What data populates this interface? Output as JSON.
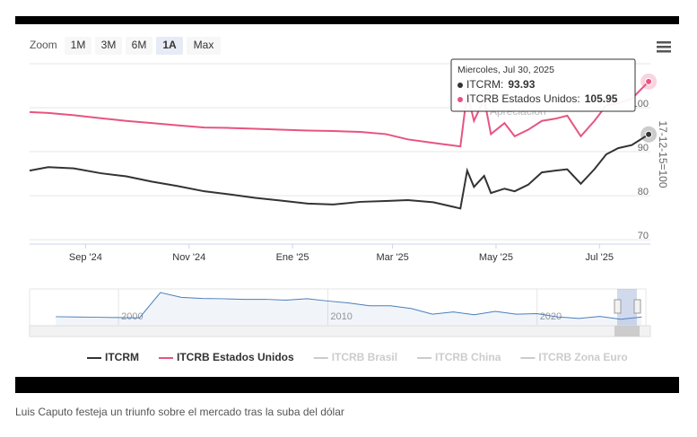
{
  "chart_data": {
    "type": "line",
    "zoom": {
      "label": "Zoom",
      "buttons": [
        "1M",
        "3M",
        "6M",
        "1A",
        "Max"
      ],
      "selected": 3
    },
    "x": [
      "2024-07-30",
      "2024-08-10",
      "2024-08-25",
      "2024-09-10",
      "2024-09-25",
      "2024-10-10",
      "2024-10-25",
      "2024-11-10",
      "2024-11-25",
      "2024-12-10",
      "2024-12-25",
      "2025-01-10",
      "2025-01-25",
      "2025-02-10",
      "2025-02-25",
      "2025-03-10",
      "2025-03-25",
      "2025-04-10",
      "2025-04-14",
      "2025-04-18",
      "2025-04-24",
      "2025-04-28",
      "2025-05-06",
      "2025-05-12",
      "2025-05-20",
      "2025-05-28",
      "2025-06-05",
      "2025-06-12",
      "2025-06-20",
      "2025-06-28",
      "2025-07-05",
      "2025-07-12",
      "2025-07-20",
      "2025-07-30"
    ],
    "series": [
      {
        "name": "ITCRM",
        "color": "#333333",
        "values": [
          85.7,
          86.5,
          86.2,
          85.1,
          84.4,
          83.2,
          82.2,
          81.0,
          80.3,
          79.5,
          78.9,
          78.2,
          78.0,
          78.6,
          78.8,
          79.0,
          78.5,
          77.1,
          85.7,
          82.0,
          84.5,
          80.6,
          81.6,
          81.0,
          82.5,
          85.3,
          85.7,
          86.0,
          82.7,
          86.0,
          89.4,
          90.8,
          91.5,
          93.93
        ]
      },
      {
        "name": "ITCRB Estados Unidos",
        "color": "#e75480",
        "values": [
          99.0,
          98.8,
          98.3,
          97.6,
          97.0,
          96.5,
          96.0,
          95.5,
          95.4,
          95.2,
          95.0,
          94.8,
          94.7,
          94.5,
          94.0,
          92.8,
          92.0,
          91.2,
          103.5,
          97.0,
          102.0,
          94.0,
          96.5,
          93.5,
          95.0,
          97.0,
          97.5,
          98.2,
          93.5,
          97.0,
          100.5,
          101.0,
          102.0,
          105.95
        ]
      }
    ],
    "hidden_series": [
      "ITCRB Brasil",
      "ITCRB China",
      "ITCRB Zona Euro"
    ],
    "xlim": [
      "2024-07-30",
      "2025-07-31"
    ],
    "xticks": [
      {
        "value": "2024-09-01",
        "label": "Sep '24"
      },
      {
        "value": "2024-11-01",
        "label": "Nov '24"
      },
      {
        "value": "2025-01-01",
        "label": "Ene '25"
      },
      {
        "value": "2025-03-01",
        "label": "Mar '25"
      },
      {
        "value": "2025-05-01",
        "label": "May '25"
      },
      {
        "value": "2025-07-01",
        "label": "Jul '25"
      }
    ],
    "ylim": [
      69,
      110
    ],
    "yticks": [
      70,
      80,
      90,
      100
    ],
    "y_axis_title": "17-12-15=100",
    "grid": true,
    "annotation": "Apreciación",
    "tooltip": {
      "title": "Miercoles, Jul 30, 2025",
      "separator": ":"
    },
    "navigator": {
      "x": [
        1997,
        1998,
        1999,
        2000,
        2001,
        2002,
        2003,
        2004,
        2005,
        2006,
        2007,
        2008,
        2009,
        2010,
        2011,
        2012,
        2013,
        2014,
        2015,
        2016,
        2017,
        2018,
        2019,
        2020,
        2021,
        2022,
        2023,
        2024,
        2025
      ],
      "values": [
        101,
        100,
        99,
        98,
        97,
        187,
        170,
        166,
        165,
        163,
        163,
        160,
        165,
        157,
        150,
        140,
        140,
        130,
        110,
        118,
        108,
        120,
        110,
        112,
        100,
        95,
        102,
        92,
        100
      ],
      "xlim": [
        1995.75,
        2025.2
      ],
      "ylim": [
        40,
        200
      ],
      "xticks": [
        2000,
        2010,
        2020
      ],
      "color": "#4a7ebb"
    },
    "caption": "Luis Caputo festeja un triunfo sobre el mercado tras la suba del dólar"
  }
}
